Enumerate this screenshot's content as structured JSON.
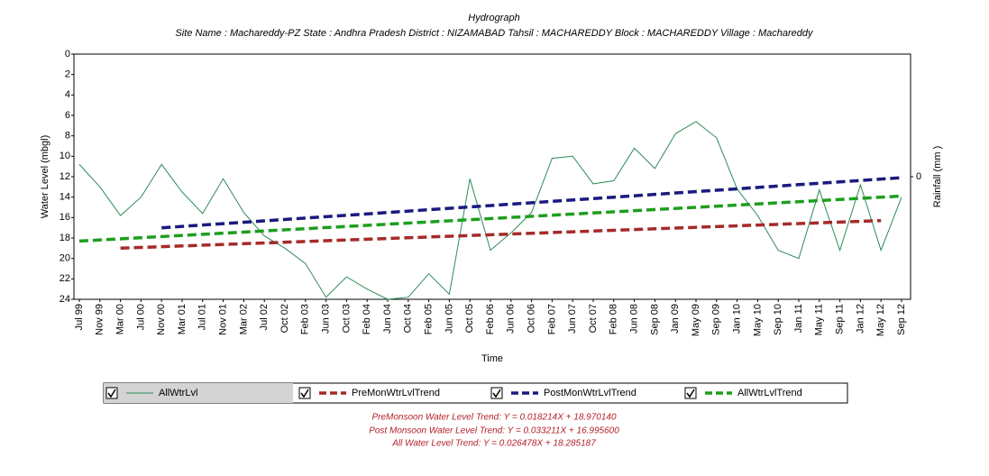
{
  "chart_data": {
    "type": "line",
    "title": "Hydrograph",
    "subtitle": "Site Name : Machareddy-PZ  State : Andhra Pradesh District : NIZAMABAD  Tahsil : MACHAREDDY  Block : MACHAREDDY Village : Machareddy",
    "x_label": "Time",
    "y_label": "Water Level (mbgl)",
    "y2_label": "Rainfall (mm )",
    "categories": [
      "Jul 99",
      "Nov 99",
      "Mar 00",
      "Jul 00",
      "Nov 00",
      "Mar 01",
      "Jul 01",
      "Nov 01",
      "Mar 02",
      "Jul 02",
      "Oct 02",
      "Feb 03",
      "Jun 03",
      "Oct 03",
      "Feb 04",
      "Jun 04",
      "Oct 04",
      "Feb 05",
      "Jun 05",
      "Oct 05",
      "Feb 06",
      "Jun 06",
      "Oct 06",
      "Feb 07",
      "Jun 07",
      "Oct 07",
      "Feb 08",
      "Jun 08",
      "Sep 08",
      "Jan 09",
      "May 09",
      "Sep 09",
      "Jan 10",
      "May 10",
      "Sep 10",
      "Jan 11",
      "May 11",
      "Sep 11",
      "Jan 12",
      "May 12",
      "Sep 12"
    ],
    "ylim": [
      0,
      24
    ],
    "y_inverted": true,
    "yticks": [
      0,
      2,
      4,
      6,
      8,
      10,
      12,
      14,
      16,
      18,
      20,
      22,
      24
    ],
    "y2lim": [
      -1,
      1
    ],
    "y2ticks": [
      0
    ],
    "series": [
      {
        "name": "AllWtrLvl",
        "color": "#2e8b57",
        "dashed": false,
        "values": [
          10.8,
          13.0,
          15.8,
          14.0,
          10.8,
          13.5,
          15.6,
          12.2,
          15.5,
          17.8,
          19.0,
          20.5,
          23.8,
          21.8,
          23.0,
          24.0,
          23.8,
          21.5,
          23.5,
          12.2,
          19.2,
          17.5,
          15.5,
          10.2,
          10.0,
          12.7,
          12.4,
          9.2,
          11.2,
          7.8,
          6.6,
          8.2,
          13.2,
          15.8,
          19.2,
          20.0,
          13.3,
          19.2,
          12.8,
          19.2,
          14.0
        ]
      },
      {
        "name": "PreMonWtrLvlTrend",
        "color": "#a52a2a",
        "dashed": true,
        "x": [
          "Mar 00",
          "May 12"
        ],
        "values": [
          19.0,
          16.3
        ]
      },
      {
        "name": "PostMonWtrLvlTrend",
        "color": "#1a1a80",
        "dashed": true,
        "x": [
          "Nov 00",
          "Sep 12"
        ],
        "values": [
          17.0,
          12.1
        ]
      },
      {
        "name": "AllWtrLvlTrend",
        "color": "#1e9e1e",
        "dashed": true,
        "x": [
          "Jul 99",
          "Sep 12"
        ],
        "values": [
          18.3,
          13.9
        ]
      }
    ],
    "annotations": [
      "PreMonsoon Water Level Trend: Y = 0.018214X + 18.970140",
      "Post Monsoon Water Level Trend: Y = 0.033211X + 16.995600",
      "All Water Level Trend: Y = 0.026478X + 18.285187"
    ]
  }
}
